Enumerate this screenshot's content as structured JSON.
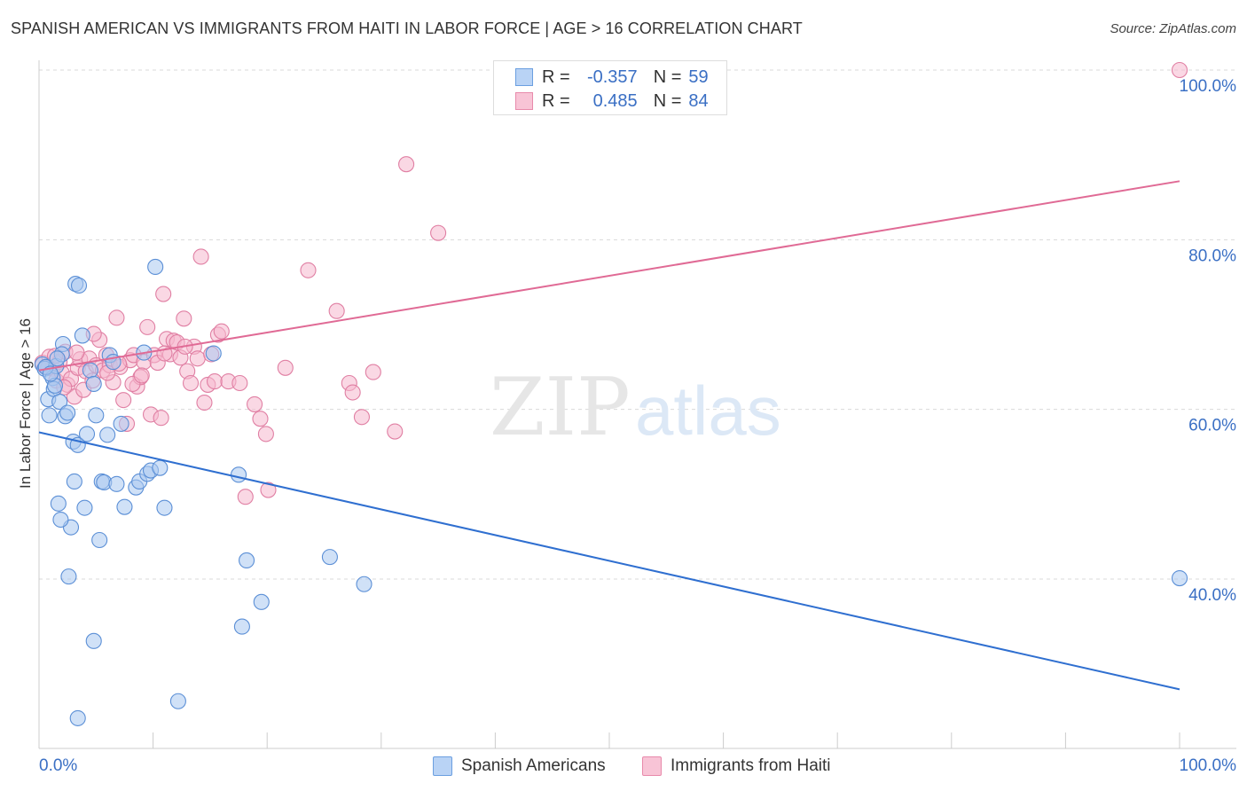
{
  "title": "SPANISH AMERICAN VS IMMIGRANTS FROM HAITI IN LABOR FORCE | AGE > 16 CORRELATION CHART",
  "source": "Source: ZipAtlas.com",
  "watermark": {
    "zip": "ZIP",
    "atlas": "atlas"
  },
  "legend": {
    "rows": [
      {
        "r_label": "R =",
        "r_value": "-0.357",
        "n_label": "N =",
        "n_value": "59",
        "fill": "#b9d3f5",
        "stroke": "#6b9fe0"
      },
      {
        "r_label": "R =",
        "r_value": "0.485",
        "n_label": "N =",
        "n_value": "84",
        "fill": "#f8c4d6",
        "stroke": "#e88aab"
      }
    ]
  },
  "colors": {
    "blue_fill": "#a9c8f0",
    "blue_stroke": "#5b8fd6",
    "blue_line": "#2f6fd0",
    "pink_fill": "#f6b8cd",
    "pink_stroke": "#e07fa3",
    "pink_line": "#e06a95",
    "tick_text": "#3a6fc4",
    "grid": "#d9d9d9"
  },
  "chart_data": {
    "type": "scatter",
    "title": "SPANISH AMERICAN VS IMMIGRANTS FROM HAITI IN LABOR FORCE | AGE > 16 CORRELATION CHART",
    "xlabel": "",
    "ylabel": "In Labor Force | Age > 16",
    "xlim": [
      0,
      100
    ],
    "ylim": [
      20,
      102
    ],
    "x_tick_labels": [
      "0.0%",
      "100.0%"
    ],
    "y_ticks": [
      40,
      60,
      80,
      100
    ],
    "y_tick_labels": [
      "40.0%",
      "60.0%",
      "80.0%",
      "100.0%"
    ],
    "grid": true,
    "legend_position": "bottom",
    "series": [
      {
        "name": "Spanish Americans",
        "color": "#5b8fd6",
        "trend": {
          "x": [
            0,
            100
          ],
          "y": [
            57.3,
            27.0
          ]
        },
        "points": [
          [
            0.3,
            65.3
          ],
          [
            0.5,
            64.8
          ],
          [
            0.8,
            61.2
          ],
          [
            0.9,
            59.3
          ],
          [
            1.2,
            63.7
          ],
          [
            1.3,
            62.4
          ],
          [
            1.4,
            62.8
          ],
          [
            1.5,
            65.1
          ],
          [
            1.8,
            60.9
          ],
          [
            2.1,
            67.7
          ],
          [
            2.3,
            59.2
          ],
          [
            2.5,
            59.6
          ],
          [
            2.6,
            40.3
          ],
          [
            2.8,
            46.1
          ],
          [
            3.0,
            56.2
          ],
          [
            3.1,
            51.5
          ],
          [
            3.2,
            74.8
          ],
          [
            3.4,
            55.8
          ],
          [
            3.5,
            74.6
          ],
          [
            3.8,
            68.7
          ],
          [
            4.0,
            48.4
          ],
          [
            4.2,
            57.1
          ],
          [
            4.5,
            64.6
          ],
          [
            4.8,
            63.0
          ],
          [
            5.0,
            59.3
          ],
          [
            5.3,
            44.6
          ],
          [
            5.5,
            51.5
          ],
          [
            5.7,
            51.4
          ],
          [
            6.0,
            57.0
          ],
          [
            6.2,
            66.4
          ],
          [
            6.8,
            51.2
          ],
          [
            7.2,
            58.3
          ],
          [
            7.5,
            48.5
          ],
          [
            8.5,
            50.8
          ],
          [
            8.8,
            51.5
          ],
          [
            9.2,
            66.7
          ],
          [
            9.5,
            52.4
          ],
          [
            9.8,
            52.8
          ],
          [
            10.2,
            76.8
          ],
          [
            10.6,
            53.1
          ],
          [
            11.0,
            48.4
          ],
          [
            12.2,
            25.6
          ],
          [
            15.3,
            66.6
          ],
          [
            17.5,
            52.3
          ],
          [
            17.8,
            34.4
          ],
          [
            18.2,
            42.2
          ],
          [
            19.5,
            37.3
          ],
          [
            25.5,
            42.6
          ],
          [
            28.5,
            39.4
          ],
          [
            4.8,
            32.7
          ],
          [
            3.4,
            23.6
          ],
          [
            1.9,
            47.0
          ],
          [
            1.7,
            48.9
          ],
          [
            0.6,
            65.0
          ],
          [
            1.0,
            64.2
          ],
          [
            2.0,
            66.5
          ],
          [
            6.5,
            65.6
          ],
          [
            1.6,
            66.0
          ],
          [
            100.0,
            40.1
          ]
        ]
      },
      {
        "name": "Immigrants from Haiti",
        "color": "#e07fa3",
        "trend": {
          "x": [
            0,
            100
          ],
          "y": [
            64.6,
            86.9
          ]
        },
        "points": [
          [
            0.3,
            65.5
          ],
          [
            0.6,
            65.0
          ],
          [
            0.9,
            66.2
          ],
          [
            1.2,
            64.8
          ],
          [
            1.5,
            63.4
          ],
          [
            1.8,
            65.6
          ],
          [
            2.0,
            64.3
          ],
          [
            2.3,
            66.8
          ],
          [
            2.5,
            62.9
          ],
          [
            2.8,
            63.6
          ],
          [
            3.1,
            61.5
          ],
          [
            3.4,
            64.9
          ],
          [
            3.6,
            65.9
          ],
          [
            3.9,
            62.3
          ],
          [
            4.1,
            64.5
          ],
          [
            4.4,
            66.0
          ],
          [
            4.7,
            63.4
          ],
          [
            5.0,
            65.2
          ],
          [
            5.3,
            68.2
          ],
          [
            5.6,
            64.6
          ],
          [
            5.9,
            66.4
          ],
          [
            6.2,
            65.2
          ],
          [
            6.5,
            63.2
          ],
          [
            6.8,
            70.8
          ],
          [
            7.1,
            65.0
          ],
          [
            7.4,
            61.1
          ],
          [
            7.7,
            58.3
          ],
          [
            8.0,
            65.8
          ],
          [
            8.3,
            66.4
          ],
          [
            8.6,
            62.7
          ],
          [
            8.9,
            63.8
          ],
          [
            9.2,
            65.6
          ],
          [
            9.5,
            69.7
          ],
          [
            9.8,
            59.4
          ],
          [
            10.1,
            66.4
          ],
          [
            10.4,
            65.5
          ],
          [
            10.7,
            59.0
          ],
          [
            10.9,
            73.6
          ],
          [
            11.2,
            68.3
          ],
          [
            11.5,
            66.5
          ],
          [
            11.8,
            68.1
          ],
          [
            12.1,
            67.9
          ],
          [
            12.4,
            66.1
          ],
          [
            12.7,
            70.7
          ],
          [
            13.0,
            64.5
          ],
          [
            13.3,
            63.1
          ],
          [
            13.6,
            67.4
          ],
          [
            13.9,
            66.0
          ],
          [
            14.2,
            78.0
          ],
          [
            14.5,
            60.8
          ],
          [
            14.8,
            62.9
          ],
          [
            15.1,
            66.5
          ],
          [
            15.4,
            63.3
          ],
          [
            15.7,
            68.8
          ],
          [
            16.0,
            69.2
          ],
          [
            16.6,
            63.3
          ],
          [
            17.6,
            63.1
          ],
          [
            18.1,
            49.7
          ],
          [
            18.9,
            60.6
          ],
          [
            19.4,
            58.9
          ],
          [
            19.9,
            57.1
          ],
          [
            20.1,
            50.5
          ],
          [
            21.6,
            64.9
          ],
          [
            23.6,
            76.4
          ],
          [
            26.1,
            71.6
          ],
          [
            27.2,
            63.1
          ],
          [
            27.5,
            62.0
          ],
          [
            28.3,
            59.1
          ],
          [
            29.3,
            64.4
          ],
          [
            31.2,
            57.4
          ],
          [
            32.2,
            88.9
          ],
          [
            35.0,
            80.8
          ],
          [
            4.8,
            68.9
          ],
          [
            2.2,
            62.6
          ],
          [
            3.3,
            66.7
          ],
          [
            6.0,
            64.3
          ],
          [
            7.0,
            65.4
          ],
          [
            8.2,
            63.0
          ],
          [
            9.0,
            64.0
          ],
          [
            11.0,
            66.6
          ],
          [
            12.8,
            67.4
          ],
          [
            1.4,
            66.3
          ],
          [
            0.8,
            64.9
          ],
          [
            100.0,
            100.0
          ]
        ]
      }
    ]
  }
}
